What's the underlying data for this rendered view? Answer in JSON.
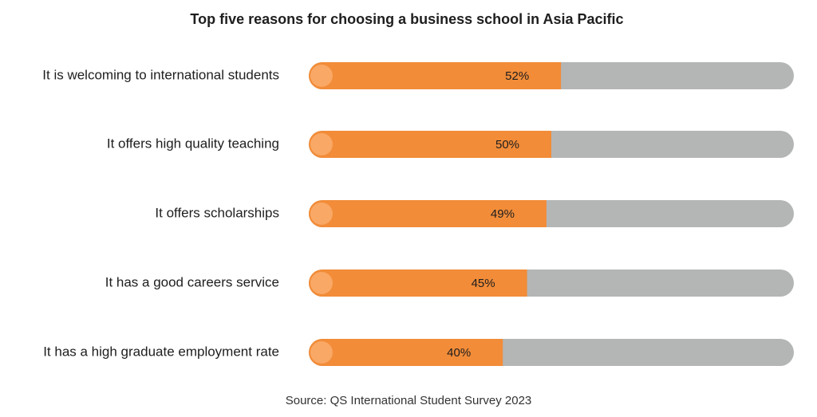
{
  "chart_data": {
    "type": "bar",
    "orientation": "horizontal",
    "title": "Top five reasons for choosing a business school in Asia Pacific",
    "categories": [
      "It is welcoming to international students",
      "It offers high quality teaching",
      "It offers scholarships",
      "It has a good careers service",
      "It has a high graduate employment rate"
    ],
    "values": [
      52,
      50,
      49,
      45,
      40
    ],
    "value_labels": [
      "52%",
      "50%",
      "49%",
      "45%",
      "40%"
    ],
    "color": "#f28c38",
    "track_color": "#b4b6b6",
    "xlim": [
      0,
      100
    ],
    "source": "Source: QS International Student Survey 2023"
  }
}
